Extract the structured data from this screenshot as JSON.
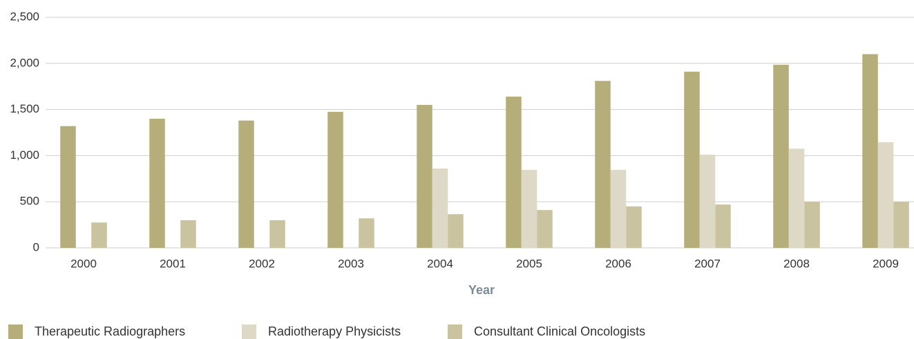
{
  "chart_data": {
    "type": "bar",
    "x_label": "Year",
    "categories": [
      "2000",
      "2001",
      "2002",
      "2003",
      "2004",
      "2005",
      "2006",
      "2007",
      "2008",
      "2009"
    ],
    "series": [
      {
        "name": "Therapeutic Radiographers",
        "color": "#b5ad7a",
        "values": [
          1320,
          1400,
          1380,
          1475,
          1550,
          1640,
          1810,
          1910,
          1985,
          2100
        ]
      },
      {
        "name": "Radiotherapy Physicists",
        "color": "#ddd9c6",
        "values": [
          null,
          null,
          null,
          null,
          860,
          845,
          845,
          1010,
          1075,
          1145
        ]
      },
      {
        "name": "Consultant Clinical Oncologists",
        "color": "#cac39f",
        "values": [
          275,
          300,
          300,
          320,
          365,
          410,
          450,
          470,
          500,
          500
        ]
      }
    ],
    "ylim": [
      0,
      2500
    ],
    "yticks": [
      0,
      {
        "value": 500,
        "label": "500"
      },
      {
        "value": 1000,
        "label": "1,000"
      },
      {
        "value": 1500,
        "label": "1,500"
      },
      {
        "value": 2000,
        "label": "2,000"
      },
      {
        "value": 2500,
        "label": "2,500"
      }
    ],
    "grid": true,
    "legend": "bottom"
  }
}
